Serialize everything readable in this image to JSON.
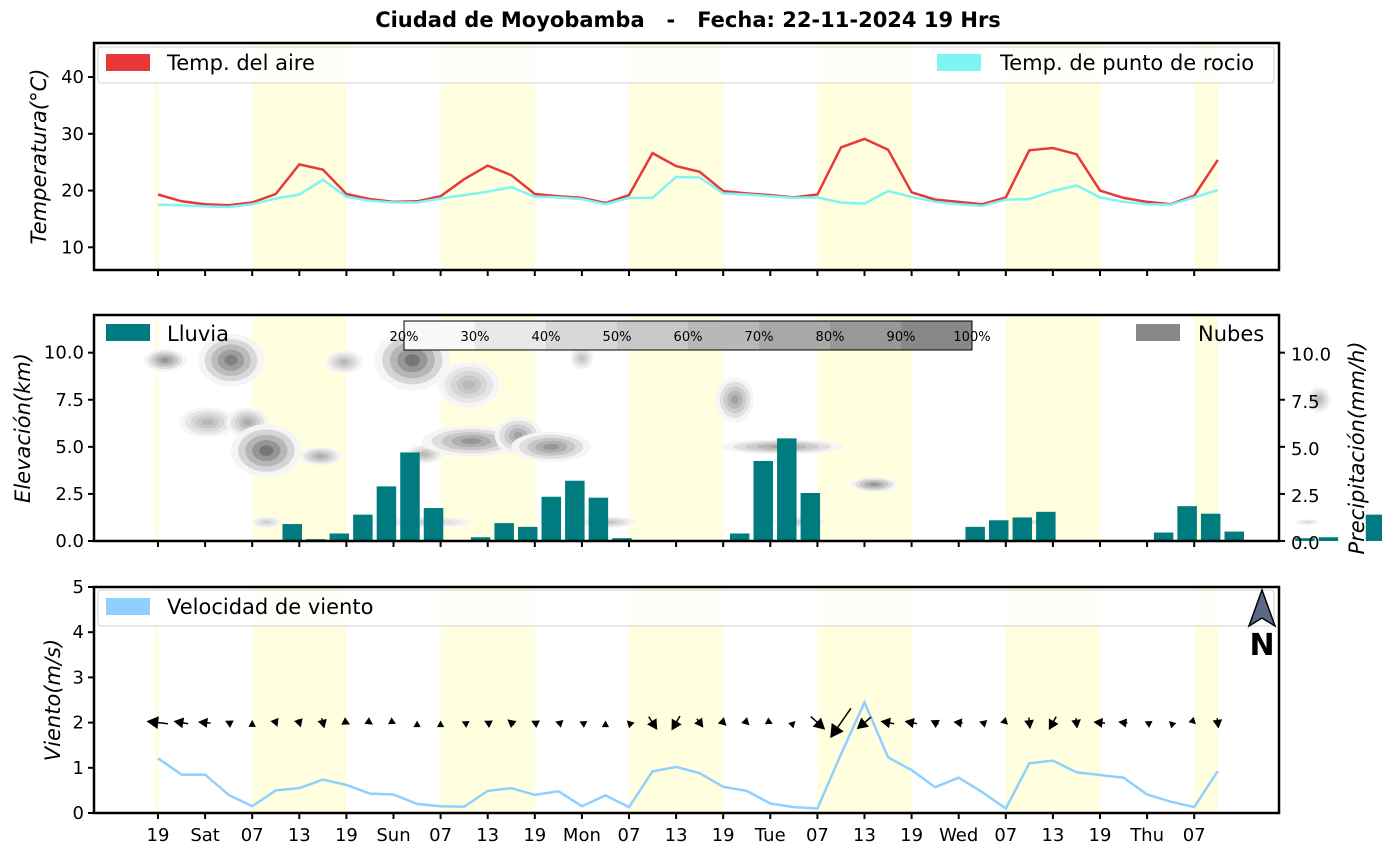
{
  "title": "Ciudad de Moyobamba   -   Fecha: 22-11-2024 19 Hrs",
  "x_tick_labels": [
    "19",
    "Sat",
    "07",
    "13",
    "19",
    "Sun",
    "07",
    "13",
    "19",
    "Mon",
    "07",
    "13",
    "19",
    "Tue",
    "07",
    "13",
    "19",
    "Wed",
    "07",
    "13",
    "19",
    "Thu",
    "07"
  ],
  "daylight_bands_start_index": [
    4,
    12,
    20,
    28,
    36,
    44
  ],
  "colors": {
    "air": "#e8393a",
    "dew": "#7ff4f4",
    "rain": "#007c80",
    "cloud": "#888888",
    "wind": "#90d0ff",
    "band": "#ffffe0"
  },
  "chart_data": [
    {
      "type": "line",
      "ylabel": "Temperatura(°C)",
      "ylim": [
        6,
        46
      ],
      "yticks": [
        "10",
        "20",
        "30",
        "40"
      ],
      "legend": [
        "Temp. del aire",
        "Temp. de punto de rocio"
      ],
      "series": [
        {
          "name": "Temp. del aire",
          "values": [
            19.3,
            18.1,
            17.6,
            17.4,
            17.9,
            19.4,
            24.6,
            23.7,
            19.4,
            18.5,
            18.0,
            18.1,
            19.0,
            22.0,
            24.4,
            22.7,
            19.4,
            19.0,
            18.7,
            17.8,
            19.2,
            26.6,
            24.3,
            23.3,
            19.9,
            19.5,
            19.2,
            18.8,
            19.3,
            27.6,
            29.1,
            27.2,
            19.7,
            18.4,
            18.0,
            17.6,
            18.8,
            27.1,
            27.5,
            26.4,
            20.0,
            18.7,
            18.0,
            17.6,
            19.1,
            25.4
          ]
        },
        {
          "name": "Temp. de punto de rocio",
          "values": [
            17.5,
            17.4,
            17.2,
            17.1,
            17.6,
            18.6,
            19.3,
            21.9,
            18.9,
            18.2,
            17.9,
            17.9,
            18.6,
            19.2,
            19.8,
            20.6,
            18.9,
            18.8,
            18.5,
            17.6,
            18.7,
            18.7,
            22.4,
            22.3,
            19.5,
            19.3,
            19.0,
            18.7,
            18.8,
            17.9,
            17.7,
            19.9,
            18.9,
            18.0,
            17.6,
            17.3,
            18.4,
            18.5,
            19.9,
            20.9,
            18.8,
            18.0,
            17.6,
            17.5,
            18.8,
            20.1
          ]
        }
      ]
    },
    {
      "type": "bar",
      "ylabel": "Elevación(km)",
      "ylabel_right": "Precipitación(mm/h)",
      "ylim": [
        0,
        12
      ],
      "yticks": [
        "0.0",
        "2.5",
        "5.0",
        "7.5",
        "10.0"
      ],
      "legend": [
        "Lluvia",
        "Nubes"
      ],
      "colorbar_labels": [
        "20%",
        "30%",
        "40%",
        "50%",
        "60%",
        "70%",
        "80%",
        "90%",
        "100%"
      ],
      "series": [
        {
          "name": "Lluvia",
          "values": [
            0,
            0,
            0,
            0.9,
            0.1,
            0.4,
            1.4,
            2.9,
            4.7,
            1.75,
            0,
            0.2,
            0.95,
            0.75,
            2.35,
            3.2,
            2.3,
            0.15,
            0,
            0,
            0,
            0,
            0.4,
            4.25,
            5.45,
            2.55,
            0,
            0,
            0,
            0,
            0,
            0,
            0.75,
            1.1,
            1.25,
            1.55,
            0,
            0,
            0,
            0,
            0.45,
            1.85,
            1.45,
            0.5,
            0,
            0,
            0.15,
            0.2,
            0,
            1.4
          ]
        }
      ],
      "clouds": [
        {
          "x": 0.3,
          "y": 9.6,
          "rx": 0.9,
          "ry": 0.6,
          "d": 0.45
        },
        {
          "x": 3.1,
          "y": 9.6,
          "rx": 1.4,
          "ry": 1.4,
          "d": 0.55
        },
        {
          "x": 2.1,
          "y": 6.3,
          "rx": 1.2,
          "ry": 0.8,
          "d": 0.3
        },
        {
          "x": 3.8,
          "y": 6.3,
          "rx": 0.9,
          "ry": 0.8,
          "d": 0.35
        },
        {
          "x": 4.6,
          "y": 4.8,
          "rx": 1.5,
          "ry": 1.4,
          "d": 0.6
        },
        {
          "x": 6.9,
          "y": 4.5,
          "rx": 0.9,
          "ry": 0.5,
          "d": 0.35
        },
        {
          "x": 7.9,
          "y": 9.5,
          "rx": 0.8,
          "ry": 0.6,
          "d": 0.3
        },
        {
          "x": 10.8,
          "y": 9.6,
          "rx": 1.6,
          "ry": 1.6,
          "d": 0.6
        },
        {
          "x": 13.2,
          "y": 8.3,
          "rx": 1.3,
          "ry": 1.2,
          "d": 0.3
        },
        {
          "x": 11.3,
          "y": 4.6,
          "rx": 0.8,
          "ry": 0.5,
          "d": 0.3
        },
        {
          "x": 13.3,
          "y": 5.3,
          "rx": 2.1,
          "ry": 0.8,
          "d": 0.45
        },
        {
          "x": 15.3,
          "y": 5.6,
          "rx": 1.0,
          "ry": 1.0,
          "d": 0.4
        },
        {
          "x": 16.7,
          "y": 5.0,
          "rx": 1.7,
          "ry": 0.8,
          "d": 0.45
        },
        {
          "x": 18.0,
          "y": 9.7,
          "rx": 0.5,
          "ry": 0.6,
          "d": 0.25
        },
        {
          "x": 11.5,
          "y": 1.0,
          "rx": 1.8,
          "ry": 0.3,
          "d": 0.2
        },
        {
          "x": 19.1,
          "y": 1.0,
          "rx": 1.2,
          "ry": 0.3,
          "d": 0.25
        },
        {
          "x": 24.5,
          "y": 7.5,
          "rx": 0.8,
          "ry": 1.2,
          "d": 0.4
        },
        {
          "x": 26.5,
          "y": 5.0,
          "rx": 2.6,
          "ry": 0.4,
          "d": 0.4
        },
        {
          "x": 27.2,
          "y": 1.0,
          "rx": 1.1,
          "ry": 0.3,
          "d": 0.2
        },
        {
          "x": 30.4,
          "y": 3.0,
          "rx": 1.0,
          "ry": 0.4,
          "d": 0.45
        },
        {
          "x": 37.1,
          "y": 1.0,
          "rx": 0.5,
          "ry": 0.15,
          "d": 0.15
        },
        {
          "x": 48.8,
          "y": 1.0,
          "rx": 0.5,
          "ry": 0.15,
          "d": 0.15
        },
        {
          "x": 49.3,
          "y": 7.5,
          "rx": 0.5,
          "ry": 0.7,
          "d": 0.3
        },
        {
          "x": 4.6,
          "y": 1.0,
          "rx": 0.6,
          "ry": 0.3,
          "d": 0.2
        }
      ]
    },
    {
      "type": "line",
      "ylabel": "Viento(m/s)",
      "ylim": [
        0,
        5
      ],
      "yticks": [
        "0",
        "1",
        "2",
        "3",
        "4",
        "5"
      ],
      "legend": [
        "Velocidad de viento"
      ],
      "compass_label": "N",
      "series": [
        {
          "name": "Velocidad de viento",
          "values": [
            1.21,
            0.85,
            0.85,
            0.4,
            0.15,
            0.5,
            0.55,
            0.74,
            0.62,
            0.43,
            0.41,
            0.2,
            0.15,
            0.14,
            0.49,
            0.55,
            0.4,
            0.48,
            0.15,
            0.39,
            0.13,
            0.92,
            1.02,
            0.88,
            0.58,
            0.49,
            0.21,
            0.13,
            0.1,
            1.3,
            2.45,
            1.23,
            0.95,
            0.57,
            0.78,
            0.46,
            0.1,
            1.1,
            1.16,
            0.9,
            0.84,
            0.78,
            0.41,
            0.25,
            0.13,
            0.93
          ]
        }
      ],
      "arrows": [
        {
          "u": -0.9,
          "v": 0.1
        },
        {
          "u": -0.6,
          "v": 0.1
        },
        {
          "u": -0.5,
          "v": 0.05
        },
        {
          "u": -0.2,
          "v": 0.1
        },
        {
          "u": 0,
          "v": 0.1
        },
        {
          "u": 0.1,
          "v": -0.25
        },
        {
          "u": 0.1,
          "v": -0.3
        },
        {
          "u": 0.1,
          "v": -0.4
        },
        {
          "u": 0.2,
          "v": -0.1
        },
        {
          "u": 0.15,
          "v": -0.1
        },
        {
          "u": 0.1,
          "v": -0.05
        },
        {
          "u": 0,
          "v": 0.05
        },
        {
          "u": 0,
          "v": 0.05
        },
        {
          "u": -0.1,
          "v": 0.05
        },
        {
          "u": -0.2,
          "v": 0.1
        },
        {
          "u": -0.25,
          "v": 0.2
        },
        {
          "u": -0.2,
          "v": 0.1
        },
        {
          "u": -0.15,
          "v": 0.05
        },
        {
          "u": -0.1,
          "v": 0.05
        },
        {
          "u": 0,
          "v": 0.05
        },
        {
          "u": -0.1,
          "v": 0.1
        },
        {
          "u": 0.35,
          "v": -0.55
        },
        {
          "u": -0.35,
          "v": -0.6
        },
        {
          "u": 0.25,
          "v": -0.35
        },
        {
          "u": 0.2,
          "v": -0.2
        },
        {
          "u": 0.15,
          "v": -0.15
        },
        {
          "u": 0.1,
          "v": -0.05
        },
        {
          "u": 0.05,
          "v": 0.05
        },
        {
          "u": 0.6,
          "v": -0.55
        },
        {
          "u": -0.9,
          "v": -1.3
        },
        {
          "u": -0.6,
          "v": -0.5
        },
        {
          "u": -0.55,
          "v": 0.1
        },
        {
          "u": -0.5,
          "v": 0.1
        },
        {
          "u": -0.3,
          "v": 0.15
        },
        {
          "u": -0.35,
          "v": 0.05
        },
        {
          "u": -0.15,
          "v": 0.05
        },
        {
          "u": 0.1,
          "v": -0.1
        },
        {
          "u": 0.05,
          "v": -0.45
        },
        {
          "u": -0.3,
          "v": -0.55
        },
        {
          "u": 0.05,
          "v": -0.4
        },
        {
          "u": -0.45,
          "v": 0.05
        },
        {
          "u": -0.35,
          "v": 0.05
        },
        {
          "u": -0.1,
          "v": 0.05
        },
        {
          "u": -0.05,
          "v": 0.05
        },
        {
          "u": 0.05,
          "v": -0.05
        },
        {
          "u": 0.05,
          "v": -0.4
        }
      ]
    }
  ]
}
